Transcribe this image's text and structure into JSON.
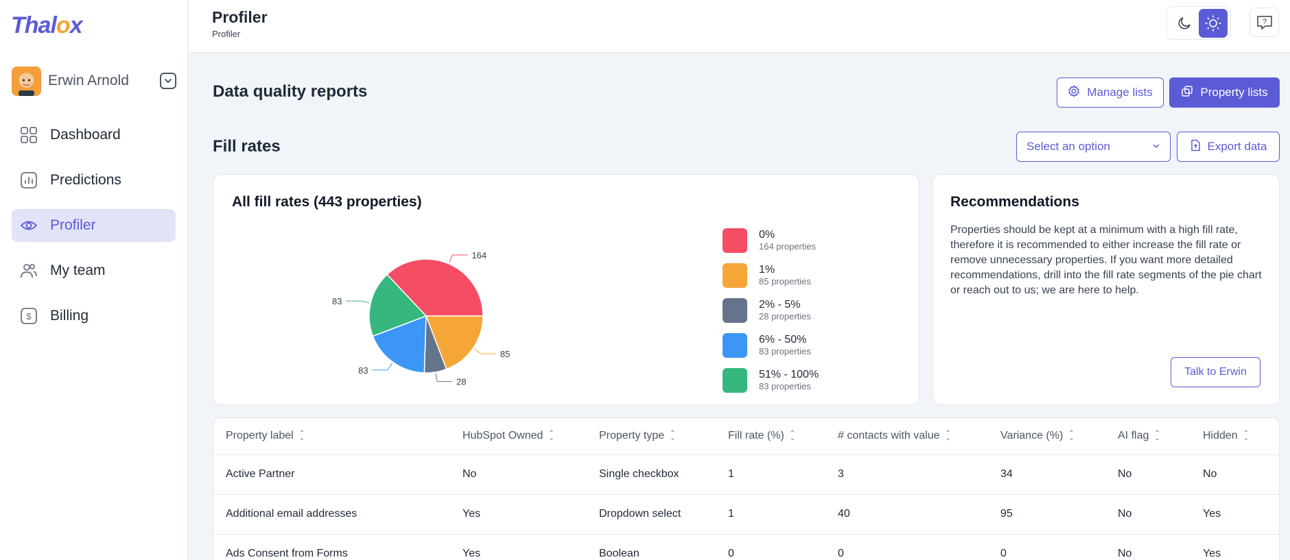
{
  "brand": {
    "logo_prefix": "Thal",
    "logo_o": "o",
    "logo_suffix": "x"
  },
  "user": {
    "name": "Erwin Arnold"
  },
  "sidebar": {
    "items": [
      {
        "label": "Dashboard",
        "icon": "grid-icon"
      },
      {
        "label": "Predictions",
        "icon": "chart-icon"
      },
      {
        "label": "Profiler",
        "icon": "eye-icon",
        "active": true
      },
      {
        "label": "My team",
        "icon": "users-icon"
      },
      {
        "label": "Billing",
        "icon": "dollar-icon"
      }
    ]
  },
  "header": {
    "title": "Profiler",
    "breadcrumb": "Profiler"
  },
  "page": {
    "heading": "Data quality reports",
    "manage_lists": "Manage lists",
    "property_lists": "Property lists",
    "section_heading": "Fill rates",
    "select_placeholder": "Select an option",
    "export_data": "Export data"
  },
  "fill_card": {
    "title": "All fill rates (443 properties)",
    "legend": [
      {
        "label": "0%",
        "sub": "164 properties",
        "color": "#f44d64"
      },
      {
        "label": "1%",
        "sub": "85 properties",
        "color": "#f6a537"
      },
      {
        "label": "2% - 5%",
        "sub": "28 properties",
        "color": "#64748b"
      },
      {
        "label": "6% - 50%",
        "sub": "83 properties",
        "color": "#3b96f6"
      },
      {
        "label": "51% - 100%",
        "sub": "83 properties",
        "color": "#36b77d"
      }
    ]
  },
  "chart_data": {
    "type": "pie",
    "title": "All fill rates (443 properties)",
    "categories": [
      "0%",
      "1%",
      "2% - 5%",
      "6% - 50%",
      "51% - 100%"
    ],
    "values": [
      164,
      85,
      28,
      83,
      83
    ],
    "colors": [
      "#f44d64",
      "#f6a537",
      "#64748b",
      "#3b96f6",
      "#36b77d"
    ],
    "legend": "right"
  },
  "recommendations": {
    "title": "Recommendations",
    "text": "Properties should be kept at a minimum with a high fill rate, therefore it is recommended to either increase the fill rate or remove unnecessary properties. If you want more detailed recommendations, drill into the fill rate segments of the pie chart or reach out to us; we are here to help.",
    "button": "Talk to Erwin"
  },
  "table": {
    "columns": [
      "Property label",
      "HubSpot Owned",
      "Property type",
      "Fill rate (%)",
      "# contacts with value",
      "Variance (%)",
      "AI flag",
      "Hidden"
    ],
    "rows": [
      [
        "Active Partner",
        "No",
        "Single checkbox",
        "1",
        "3",
        "34",
        "No",
        "No"
      ],
      [
        "Additional email addresses",
        "Yes",
        "Dropdown select",
        "1",
        "40",
        "95",
        "No",
        "Yes"
      ],
      [
        "Ads Consent from Forms",
        "Yes",
        "Boolean",
        "0",
        "0",
        "0",
        "No",
        "Yes"
      ]
    ]
  }
}
